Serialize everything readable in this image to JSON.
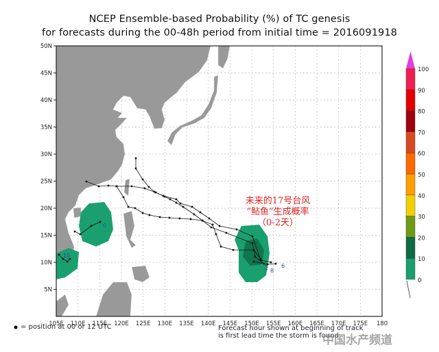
{
  "title_line1": "NCEP Ensemble-based Probability (%) of TC genesis",
  "title_line2": "for forecasts during the 00-48h period from initial time = 2016091918",
  "map": {
    "lon_labels": [
      "105E",
      "110E",
      "115E",
      "120E",
      "125E",
      "130E",
      "135E",
      "140E",
      "145E",
      "150E",
      "155E",
      "160E",
      "165E",
      "170E",
      "175E",
      "180"
    ],
    "lat_labels": [
      "50N",
      "45N",
      "40N",
      "35N",
      "30N",
      "25N",
      "20N",
      "15N",
      "10N",
      "5N"
    ],
    "land_color": "#999999",
    "track_labels": [
      "0",
      "10",
      "2",
      "8",
      "6"
    ]
  },
  "colorbar": {
    "labels": [
      "0",
      "10",
      "20",
      "30",
      "40",
      "50",
      "60",
      "70",
      "80",
      "90",
      "100"
    ],
    "colors": [
      "#1aa06e",
      "#0e6a47",
      "#6f9a16",
      "#f0d000",
      "#ffa000",
      "#ff6a00",
      "#d84a20",
      "#a00010",
      "#e40000",
      "#f02050"
    ],
    "over_color": "#e040e0"
  },
  "annotation": {
    "line1": "未来的17号台风",
    "line2": "“鲇鱼”生成概率",
    "line3": "（0-2天）"
  },
  "legend": {
    "marker_text": "= position at 00 or 12 UTC"
  },
  "note": {
    "line1": "Forecast hour shown at beginning of track",
    "line2": "is first lead time the storm is found"
  },
  "watermark": "中国水产频道"
}
